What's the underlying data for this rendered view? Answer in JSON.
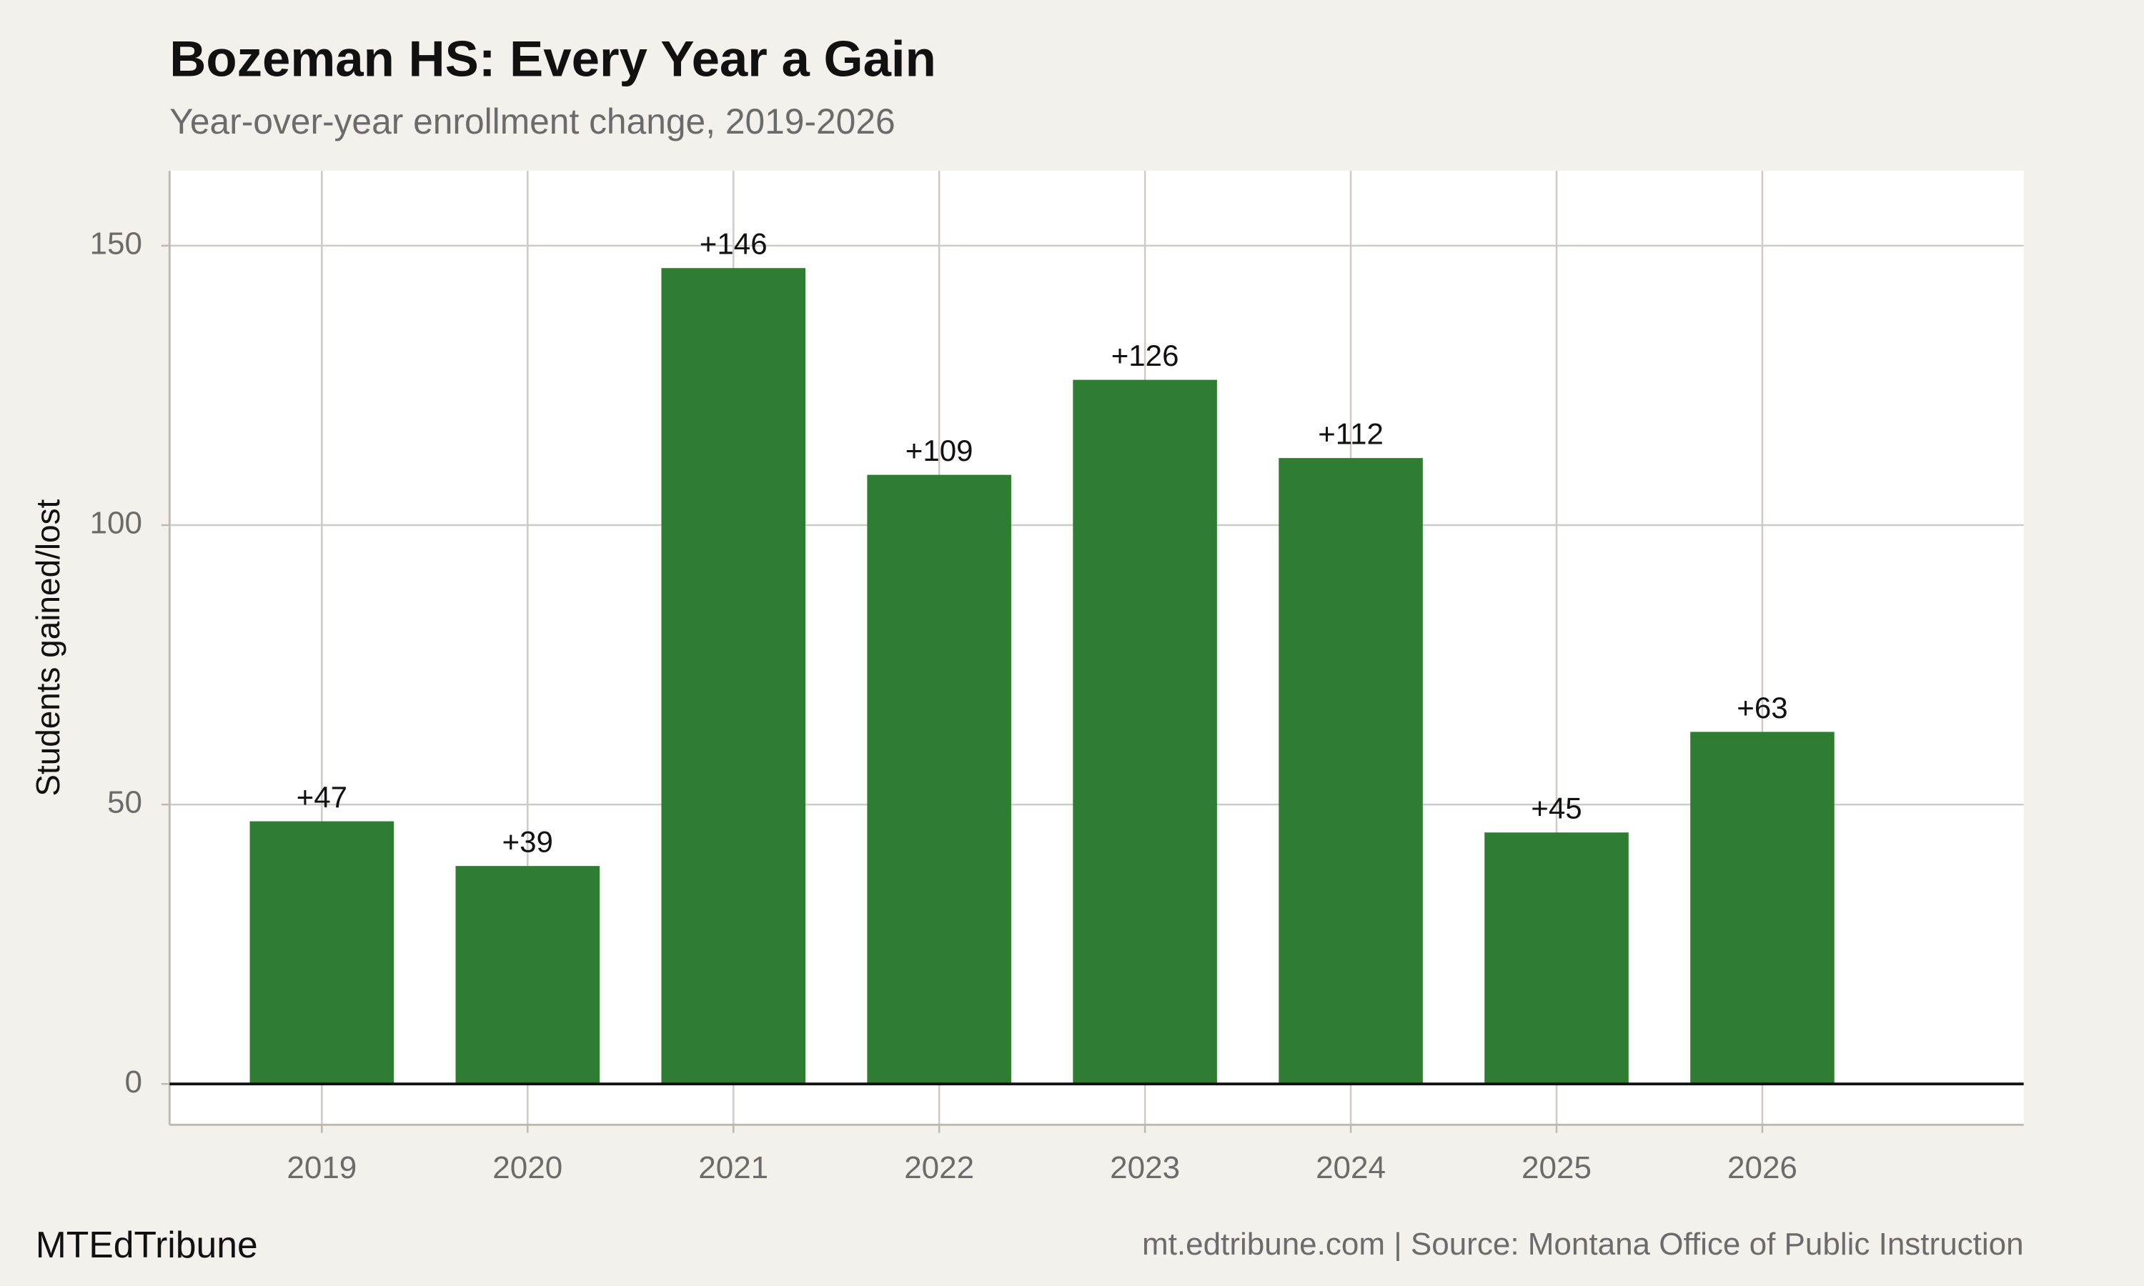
{
  "chart_data": {
    "type": "bar",
    "title": "Bozeman HS: Every Year a Gain",
    "subtitle": "Year-over-year enrollment change, 2019-2026",
    "y_label": "Students gained/lost",
    "x": [
      2019,
      2020,
      2021,
      2022,
      2023,
      2024,
      2025,
      2026
    ],
    "values": [
      47,
      39,
      146,
      109,
      126,
      112,
      45,
      63
    ],
    "value_labels": [
      "+47",
      "+39",
      "+146",
      "+109",
      "+126",
      "+112",
      "+45",
      "+63"
    ],
    "color": "#2e7d32",
    "xlim": [
      2018.26,
      2027.27
    ],
    "xticks": [
      2019,
      2020,
      2021,
      2022,
      2023,
      2024,
      2025,
      2026
    ],
    "ylim": [
      -7.3,
      163.4
    ],
    "yticks": [
      0,
      50,
      100,
      150
    ],
    "grid": true,
    "brand": "MTEdTribune",
    "source": "mt.edtribune.com | Source: Montana Office of Public Instruction"
  }
}
